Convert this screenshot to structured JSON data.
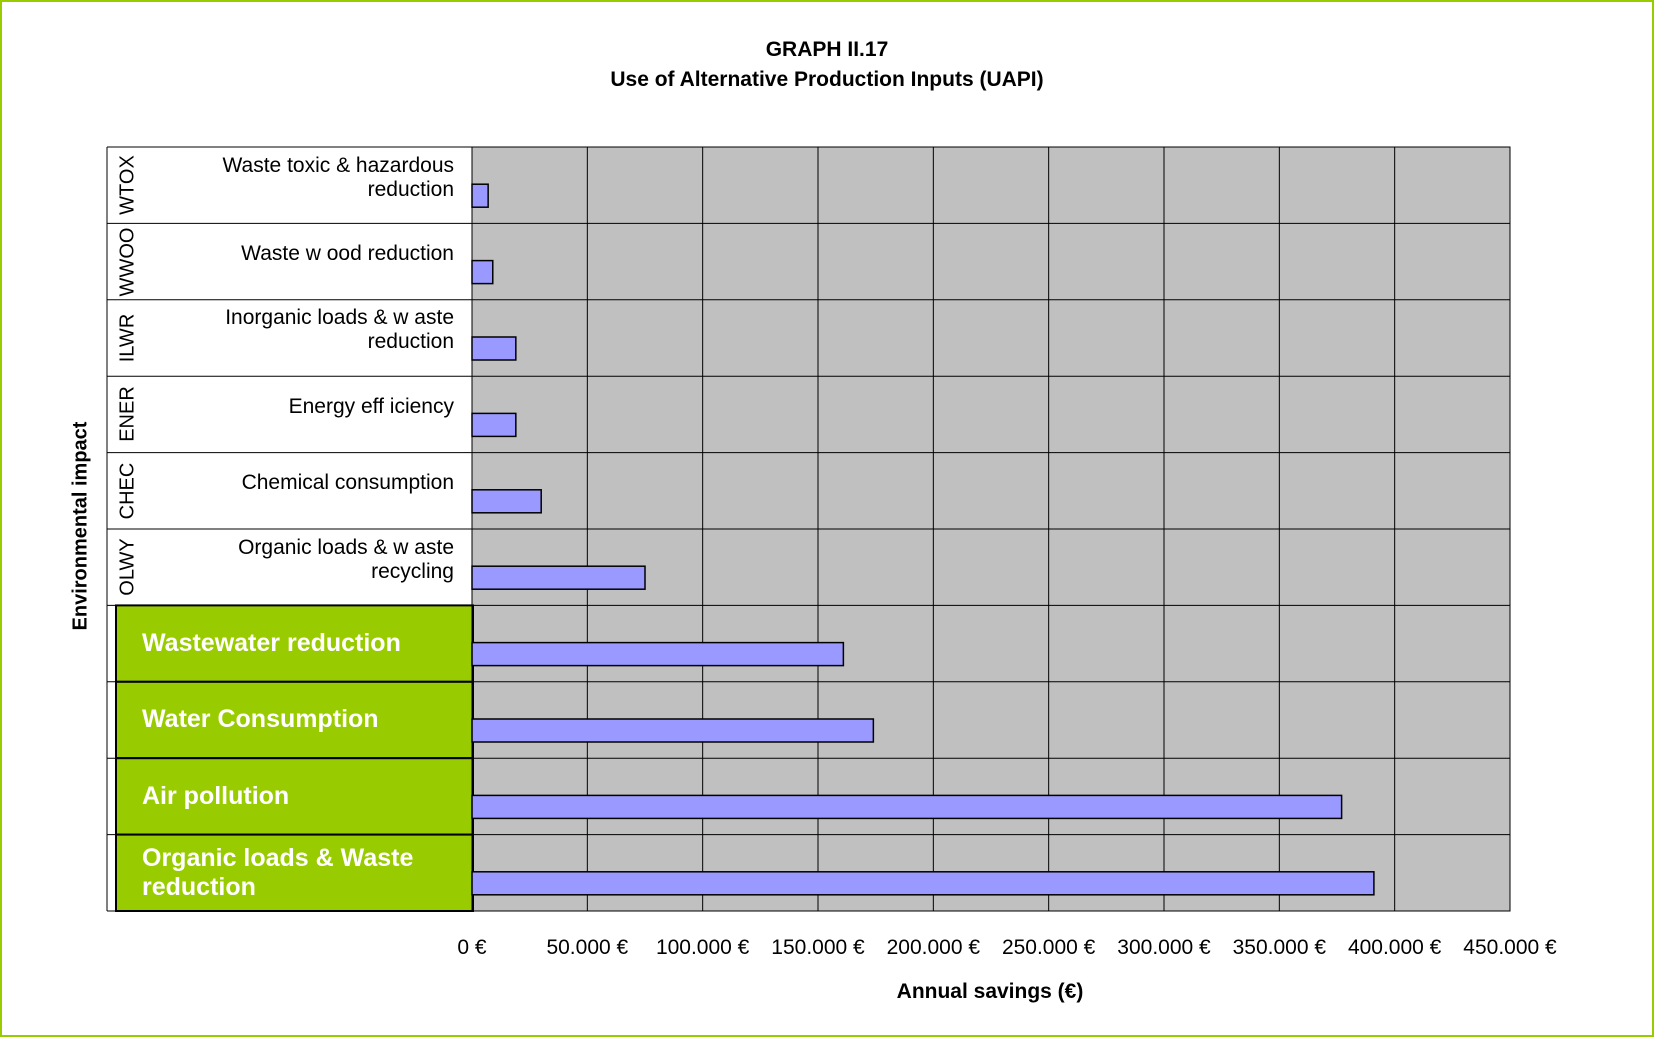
{
  "chart_data": {
    "type": "bar",
    "orientation": "horizontal",
    "title": "GRAPH II.17",
    "subtitle": "Use of Alternative Production Inputs (UAPI)",
    "x_label": "Annual savings (€)",
    "y_label": "Environmental impact",
    "categories": [
      "Waste toxic & hazardous reduction",
      "Waste w ood reduction",
      "Inorganic loads & w aste reduction",
      "Energy eff iciency",
      "Chemical consumption",
      "Organic loads & w aste recycling",
      "Wastewater reduction",
      "Water Consumption",
      "Air pollution",
      "Organic loads & Waste reduction"
    ],
    "category_codes": [
      "WTOX",
      "WWOO",
      "ILWR",
      "ENER",
      "CHEC",
      "OLWY",
      null,
      null,
      null,
      null
    ],
    "highlighted": [
      false,
      false,
      false,
      false,
      false,
      false,
      true,
      true,
      true,
      true
    ],
    "highlight_color": "#99cc00",
    "values": [
      7000,
      9000,
      19000,
      19000,
      30000,
      75000,
      161000,
      174000,
      377000,
      391000
    ],
    "color": "#9999ff",
    "xlim": [
      0,
      450000
    ],
    "xticks": [
      {
        "value": 0,
        "label": "0 €"
      },
      {
        "value": 50000,
        "label": "50.000 €"
      },
      {
        "value": 100000,
        "label": "100.000 €"
      },
      {
        "value": 150000,
        "label": "150.000 €"
      },
      {
        "value": 200000,
        "label": "200.000 €"
      },
      {
        "value": 250000,
        "label": "250.000 €"
      },
      {
        "value": 300000,
        "label": "300.000 €"
      },
      {
        "value": 350000,
        "label": "350.000 €"
      },
      {
        "value": 400000,
        "label": "400.000 €"
      },
      {
        "value": 450000,
        "label": "450.000 €"
      }
    ],
    "grid": true
  }
}
